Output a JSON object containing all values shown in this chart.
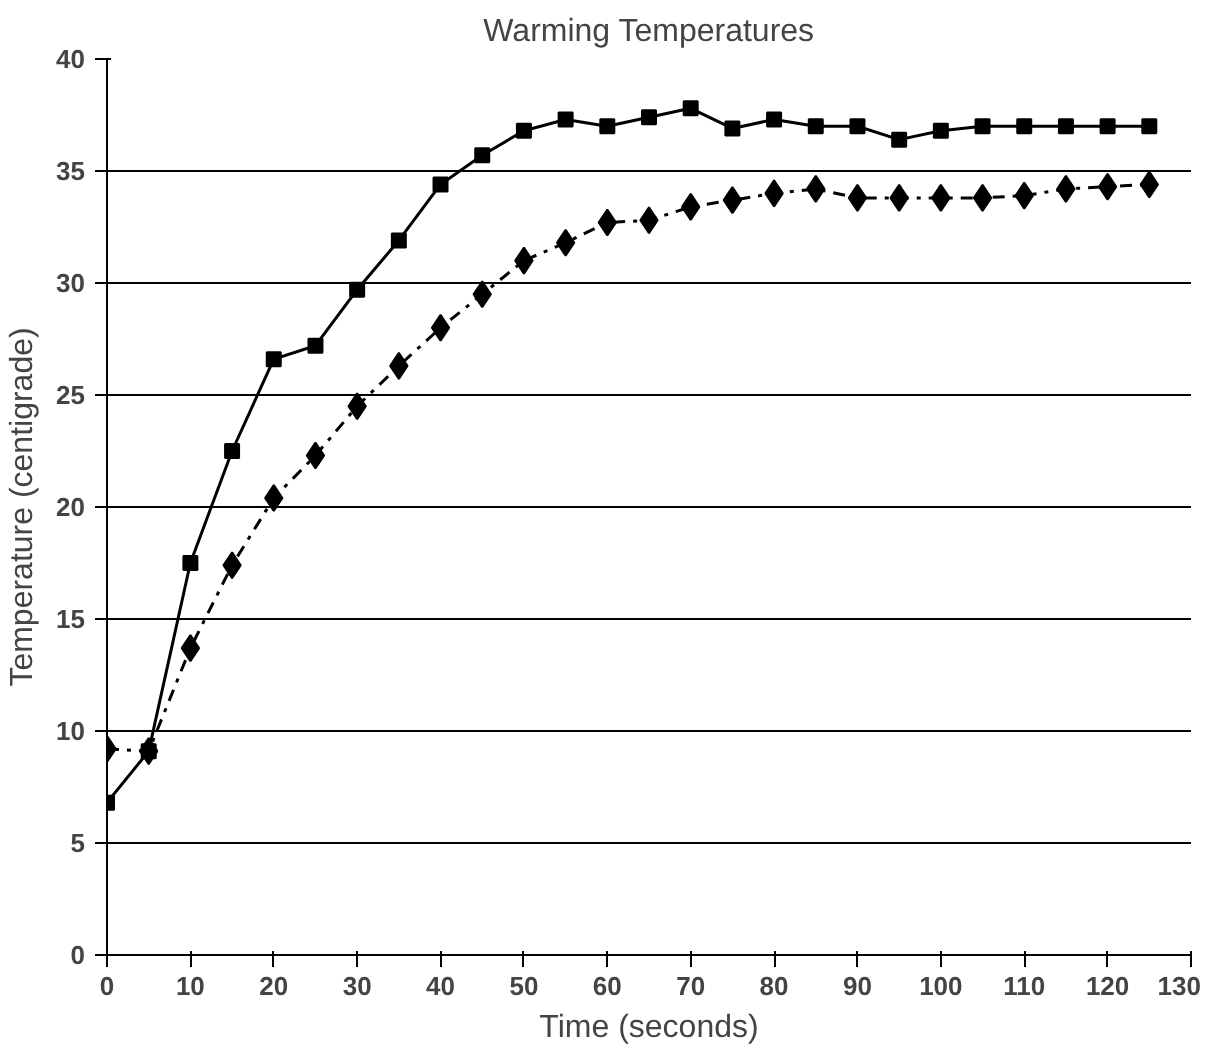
{
  "chart_data": {
    "type": "line",
    "title": "Warming Temperatures",
    "xlabel": "Time (seconds)",
    "ylabel": "Temperature (centigrade)",
    "x": [
      0,
      5,
      10,
      15,
      20,
      25,
      30,
      35,
      40,
      45,
      50,
      55,
      60,
      65,
      70,
      75,
      80,
      85,
      90,
      95,
      100,
      105,
      110,
      115,
      120,
      125
    ],
    "series": [
      {
        "color": "#000000",
        "marker": "diamond",
        "line_style": "dashed",
        "values": [
          9.2,
          9.1,
          13.7,
          17.4,
          20.4,
          22.3,
          24.5,
          26.3,
          28.0,
          29.5,
          31.0,
          31.8,
          32.7,
          32.8,
          33.4,
          33.7,
          34.0,
          34.2,
          33.8,
          33.8,
          33.8,
          33.8,
          33.9,
          34.2,
          34.3,
          34.4
        ]
      },
      {
        "color": "#000000",
        "marker": "square",
        "line_style": "solid",
        "values": [
          6.8,
          9.1,
          17.5,
          22.5,
          26.6,
          27.2,
          29.7,
          31.9,
          34.4,
          35.7,
          36.8,
          37.3,
          37.0,
          37.4,
          37.8,
          36.9,
          37.3,
          37.0,
          37.0,
          36.4,
          36.8,
          37.0,
          37.0,
          37.0,
          37.0,
          37.0
        ]
      }
    ],
    "xlim": [
      0,
      130
    ],
    "xticks": [
      0,
      10,
      20,
      30,
      40,
      50,
      60,
      70,
      80,
      90,
      100,
      110,
      120,
      130
    ],
    "ylim": [
      0,
      40
    ],
    "yticks": [
      0,
      5,
      10,
      15,
      20,
      25,
      30,
      35,
      40
    ],
    "grid": "y"
  }
}
